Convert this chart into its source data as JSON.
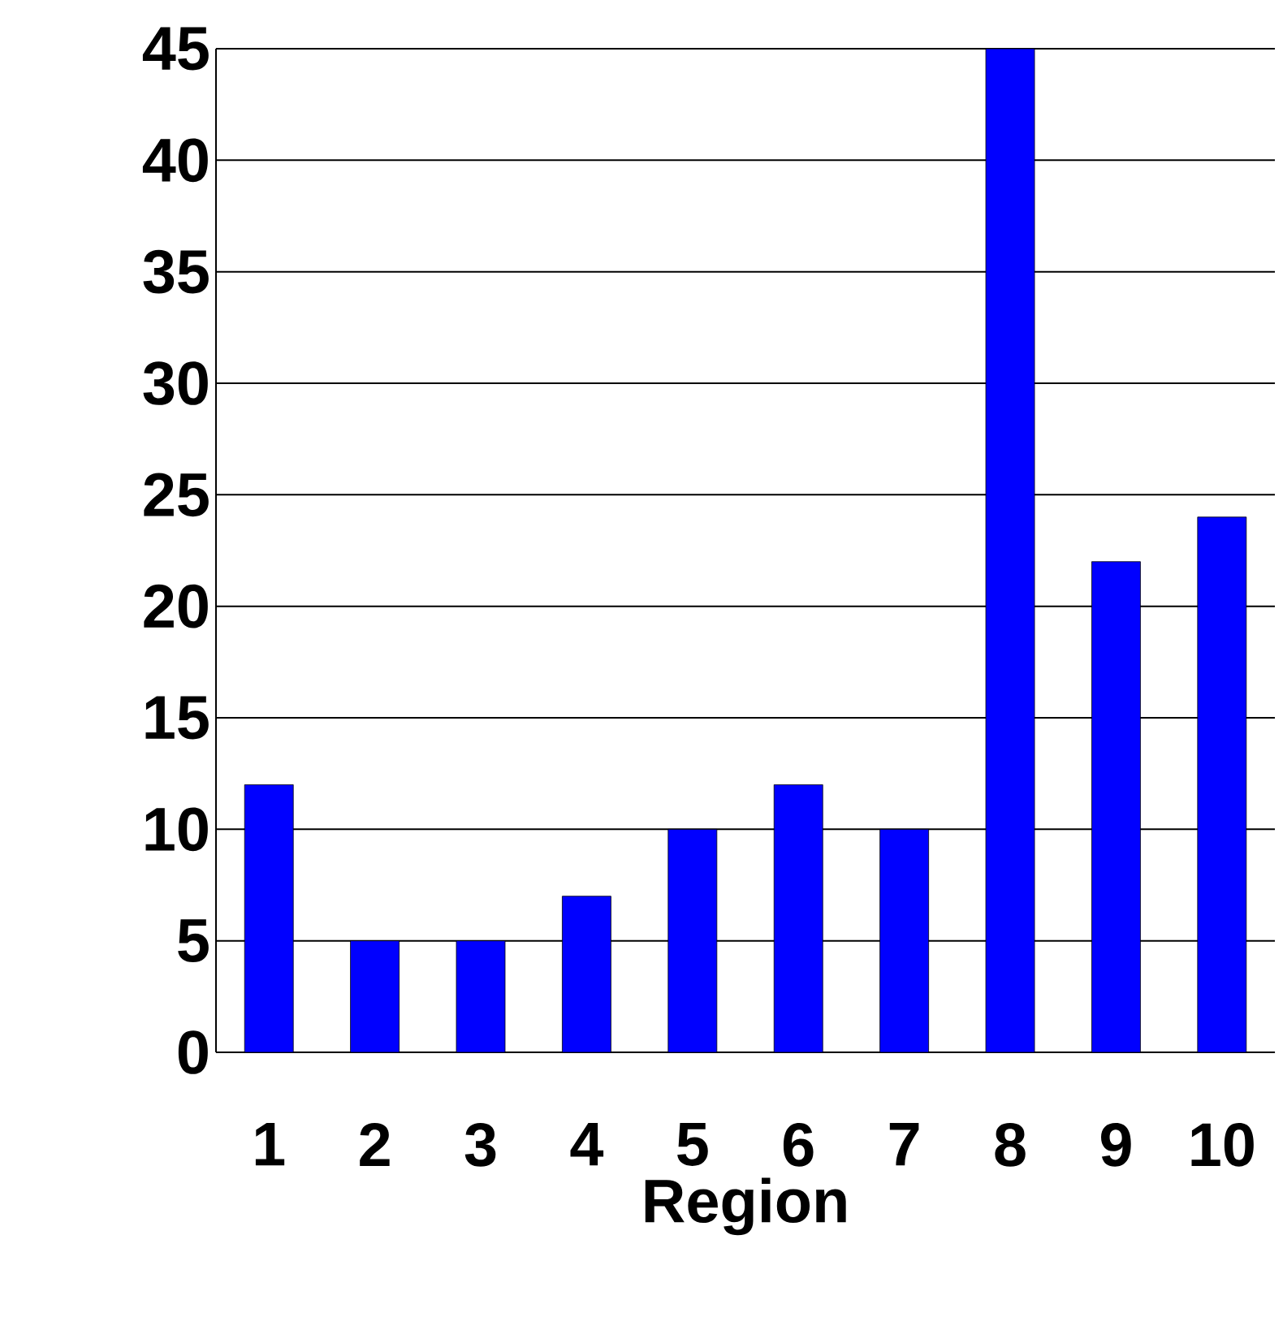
{
  "chart_data": {
    "type": "bar",
    "xlabel": "Region",
    "categories": [
      "1",
      "2",
      "3",
      "4",
      "5",
      "6",
      "7",
      "8",
      "9",
      "10"
    ],
    "values": [
      12,
      5,
      5,
      7,
      10,
      12,
      10,
      45,
      22,
      24
    ],
    "color": "#0000ff",
    "ylim": [
      0,
      45
    ],
    "yticks": [
      0,
      5,
      10,
      15,
      20,
      25,
      30,
      35,
      40,
      45
    ],
    "grid": "y"
  }
}
